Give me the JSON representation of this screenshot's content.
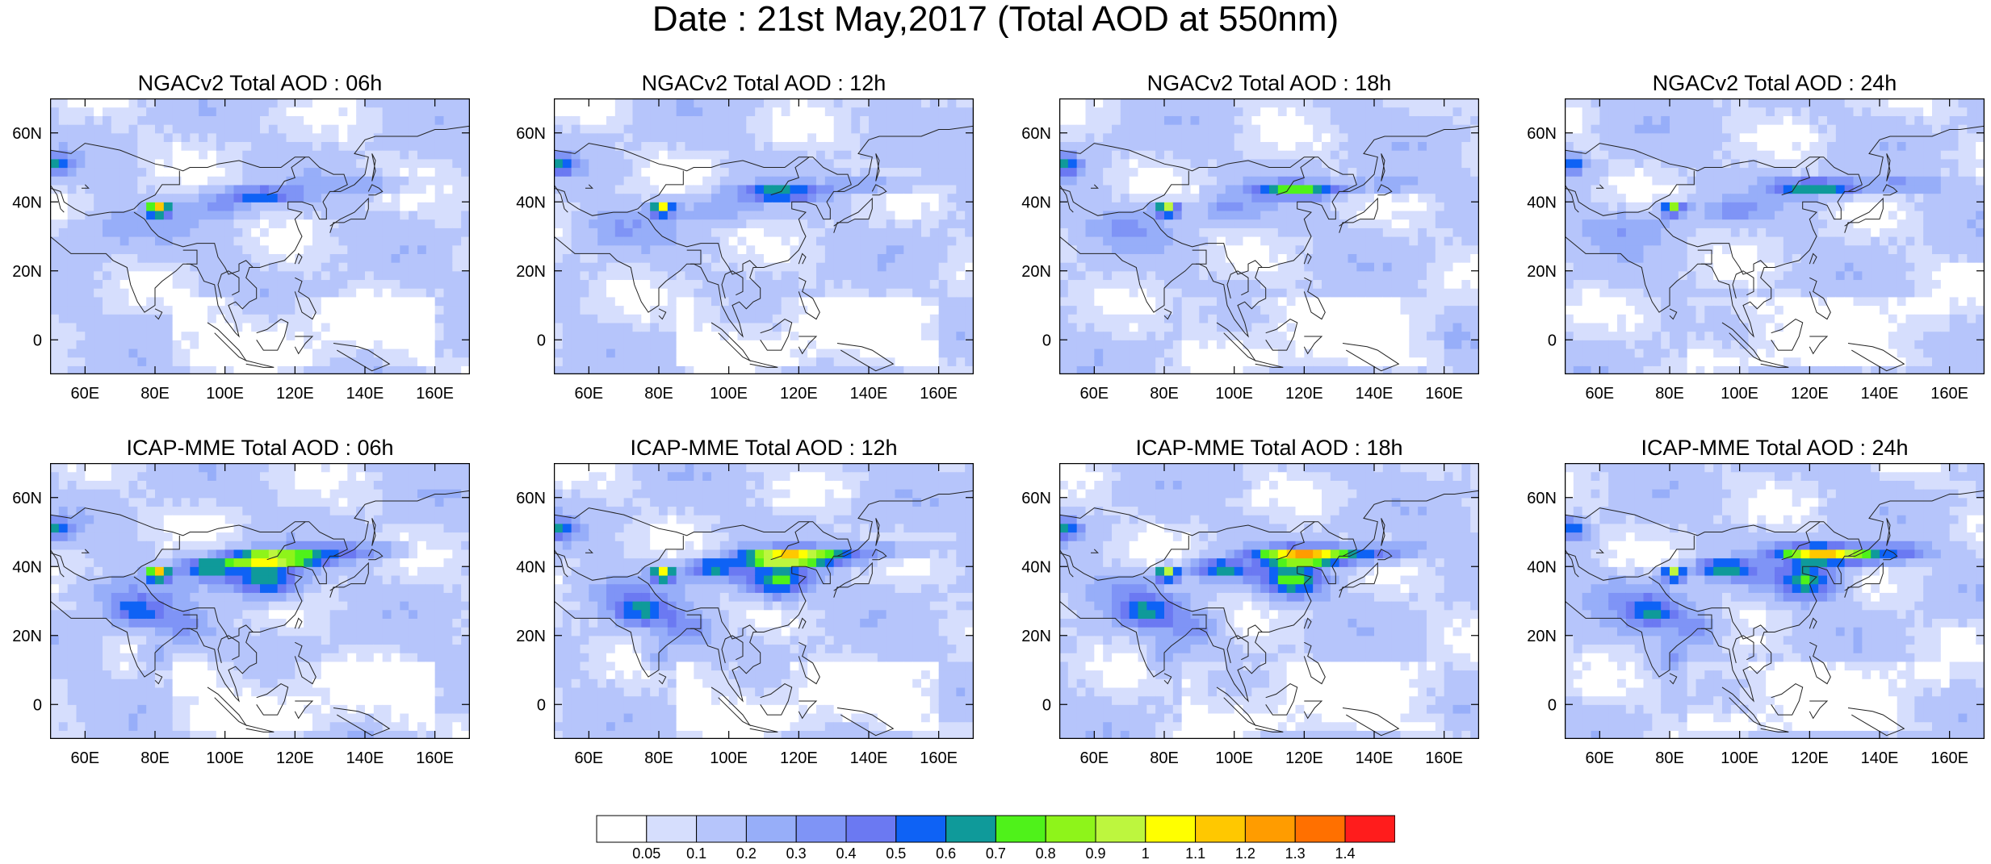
{
  "figure": {
    "title": "Date : 21st May,2017 (Total AOD at 550nm)"
  },
  "axes": {
    "lon_ticks": [
      "60E",
      "80E",
      "100E",
      "120E",
      "140E",
      "160E"
    ],
    "lat_ticks": [
      "60N",
      "40N",
      "20N",
      "0"
    ],
    "lon_range": [
      50,
      170
    ],
    "lat_range": [
      -10,
      70
    ]
  },
  "panels": [
    {
      "title": "NGACv2 Total AOD : 06h",
      "model": "NGACv2",
      "lead": "06h"
    },
    {
      "title": "NGACv2 Total AOD : 12h",
      "model": "NGACv2",
      "lead": "12h"
    },
    {
      "title": "NGACv2 Total AOD : 18h",
      "model": "NGACv2",
      "lead": "18h"
    },
    {
      "title": "NGACv2 Total AOD : 24h",
      "model": "NGACv2",
      "lead": "24h"
    },
    {
      "title": "ICAP-MME Total AOD : 06h",
      "model": "ICAP-MME",
      "lead": "06h"
    },
    {
      "title": "ICAP-MME Total AOD : 12h",
      "model": "ICAP-MME",
      "lead": "12h"
    },
    {
      "title": "ICAP-MME Total AOD : 18h",
      "model": "ICAP-MME",
      "lead": "18h"
    },
    {
      "title": "ICAP-MME Total AOD : 24h",
      "model": "ICAP-MME",
      "lead": "24h"
    }
  ],
  "colorbar": {
    "labels": [
      "0.05",
      "0.1",
      "0.2",
      "0.3",
      "0.4",
      "0.5",
      "0.6",
      "0.7",
      "0.8",
      "0.9",
      "1",
      "1.1",
      "1.2",
      "1.3",
      "1.4"
    ],
    "colors": [
      "#ffffff",
      "#d6defd",
      "#b6c5fb",
      "#97aef9",
      "#7f94f6",
      "#6b79f2",
      "#0e62f5",
      "#0f9a9a",
      "#4ff21a",
      "#8ef41a",
      "#bdf63e",
      "#ffff00",
      "#ffc800",
      "#ff9c00",
      "#ff7000",
      "#ff1c1c"
    ]
  }
}
